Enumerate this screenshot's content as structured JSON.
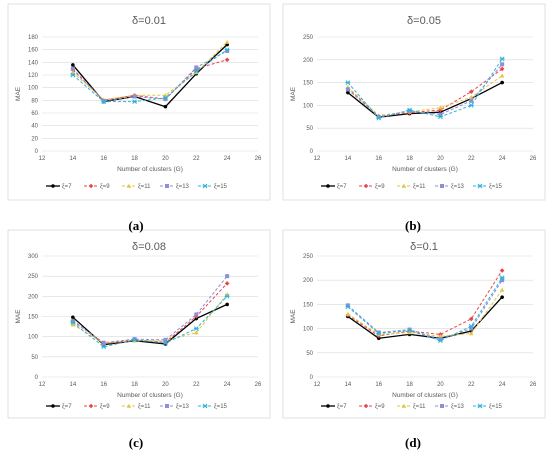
{
  "figure": {
    "captions": [
      "(a)",
      "(b)",
      "(c)",
      "(d)"
    ]
  },
  "chart_data": [
    {
      "type": "line",
      "title": "δ=0.01",
      "xlabel": "Number of clusters (G)",
      "ylabel": "MAE",
      "xlim": [
        12,
        26
      ],
      "ylim": [
        0,
        180
      ],
      "x_ticks": [
        12,
        14,
        16,
        18,
        20,
        22,
        24,
        26
      ],
      "y_ticks": [
        0,
        20,
        40,
        60,
        80,
        100,
        120,
        140,
        160,
        180
      ],
      "x": [
        14,
        16,
        18,
        20,
        22,
        24
      ],
      "grid": true,
      "legend": "bottom",
      "series": [
        {
          "name": "ξ=7",
          "color": "#000000",
          "dash": "solid",
          "marker": "circle",
          "values": [
            136,
            78,
            86,
            70,
            122,
            168
          ]
        },
        {
          "name": "ξ=9",
          "color": "#e8464a",
          "dash": "dash",
          "marker": "diamond",
          "values": [
            128,
            80,
            88,
            82,
            130,
            144
          ]
        },
        {
          "name": "ξ=11",
          "color": "#e3c440",
          "dash": "dash",
          "marker": "triangle",
          "values": [
            124,
            81,
            88,
            88,
            124,
            172
          ]
        },
        {
          "name": "ξ=13",
          "color": "#8a8fd6",
          "dash": "dash",
          "marker": "square",
          "values": [
            130,
            79,
            86,
            82,
            132,
            158
          ]
        },
        {
          "name": "ξ=15",
          "color": "#2fb2d8",
          "dash": "dash",
          "marker": "star",
          "values": [
            120,
            78,
            78,
            84,
            126,
            160
          ]
        }
      ]
    },
    {
      "type": "line",
      "title": "δ=0.05",
      "xlabel": "Number of clusters (G)",
      "ylabel": "MAE",
      "xlim": [
        12,
        26
      ],
      "ylim": [
        0,
        250
      ],
      "x_ticks": [
        12,
        14,
        16,
        18,
        20,
        22,
        24,
        26
      ],
      "y_ticks": [
        0,
        50,
        100,
        150,
        200,
        250
      ],
      "x": [
        14,
        16,
        18,
        20,
        22,
        24
      ],
      "grid": true,
      "legend": "bottom",
      "series": [
        {
          "name": "ξ=7",
          "color": "#000000",
          "dash": "solid",
          "marker": "circle",
          "values": [
            128,
            74,
            82,
            85,
            115,
            150
          ]
        },
        {
          "name": "ξ=9",
          "color": "#e8464a",
          "dash": "dash",
          "marker": "diamond",
          "values": [
            138,
            76,
            84,
            90,
            130,
            180
          ]
        },
        {
          "name": "ξ=11",
          "color": "#e3c440",
          "dash": "dash",
          "marker": "triangle",
          "values": [
            140,
            78,
            86,
            95,
            118,
            165
          ]
        },
        {
          "name": "ξ=13",
          "color": "#8a8fd6",
          "dash": "dash",
          "marker": "square",
          "values": [
            135,
            75,
            88,
            80,
            110,
            190
          ]
        },
        {
          "name": "ξ=15",
          "color": "#2fb2d8",
          "dash": "dash",
          "marker": "star",
          "values": [
            150,
            72,
            90,
            75,
            100,
            202
          ]
        }
      ]
    },
    {
      "type": "line",
      "title": "δ=0.08",
      "xlabel": "Number of clusters (G)",
      "ylabel": "MAE",
      "xlim": [
        12,
        26
      ],
      "ylim": [
        0,
        300
      ],
      "x_ticks": [
        12,
        14,
        16,
        18,
        20,
        22,
        24,
        26
      ],
      "y_ticks": [
        0,
        50,
        100,
        150,
        200,
        250,
        300
      ],
      "x": [
        14,
        16,
        18,
        20,
        22,
        24
      ],
      "grid": true,
      "legend": "bottom",
      "series": [
        {
          "name": "ξ=7",
          "color": "#000000",
          "dash": "solid",
          "marker": "circle",
          "values": [
            148,
            80,
            90,
            82,
            145,
            180
          ]
        },
        {
          "name": "ξ=9",
          "color": "#e8464a",
          "dash": "dash",
          "marker": "diamond",
          "values": [
            140,
            82,
            92,
            86,
            150,
            232
          ]
        },
        {
          "name": "ξ=11",
          "color": "#e3c440",
          "dash": "dash",
          "marker": "triangle",
          "values": [
            130,
            84,
            90,
            90,
            110,
            205
          ]
        },
        {
          "name": "ξ=13",
          "color": "#8a8fd6",
          "dash": "dash",
          "marker": "square",
          "values": [
            138,
            85,
            94,
            92,
            155,
            250
          ]
        },
        {
          "name": "ξ=15",
          "color": "#2fb2d8",
          "dash": "dash",
          "marker": "star",
          "values": [
            135,
            75,
            92,
            84,
            120,
            200
          ]
        }
      ]
    },
    {
      "type": "line",
      "title": "δ=0.1",
      "xlabel": "Number of clusters (G)",
      "ylabel": "MAE",
      "xlim": [
        12,
        26
      ],
      "ylim": [
        0,
        250
      ],
      "x_ticks": [
        12,
        14,
        16,
        18,
        20,
        22,
        24,
        26
      ],
      "y_ticks": [
        0,
        50,
        100,
        150,
        200,
        250
      ],
      "x": [
        14,
        16,
        18,
        20,
        22,
        24
      ],
      "grid": true,
      "legend": "bottom",
      "series": [
        {
          "name": "ξ=7",
          "color": "#000000",
          "dash": "solid",
          "marker": "circle",
          "values": [
            125,
            80,
            88,
            80,
            95,
            165
          ]
        },
        {
          "name": "ξ=9",
          "color": "#e8464a",
          "dash": "dash",
          "marker": "diamond",
          "values": [
            128,
            85,
            95,
            88,
            120,
            220
          ]
        },
        {
          "name": "ξ=11",
          "color": "#e3c440",
          "dash": "dash",
          "marker": "triangle",
          "values": [
            130,
            88,
            92,
            84,
            90,
            180
          ]
        },
        {
          "name": "ξ=13",
          "color": "#8a8fd6",
          "dash": "dash",
          "marker": "square",
          "values": [
            148,
            92,
            98,
            78,
            100,
            200
          ]
        },
        {
          "name": "ξ=15",
          "color": "#2fb2d8",
          "dash": "dash",
          "marker": "star",
          "values": [
            145,
            90,
            96,
            75,
            105,
            205
          ]
        }
      ]
    }
  ]
}
